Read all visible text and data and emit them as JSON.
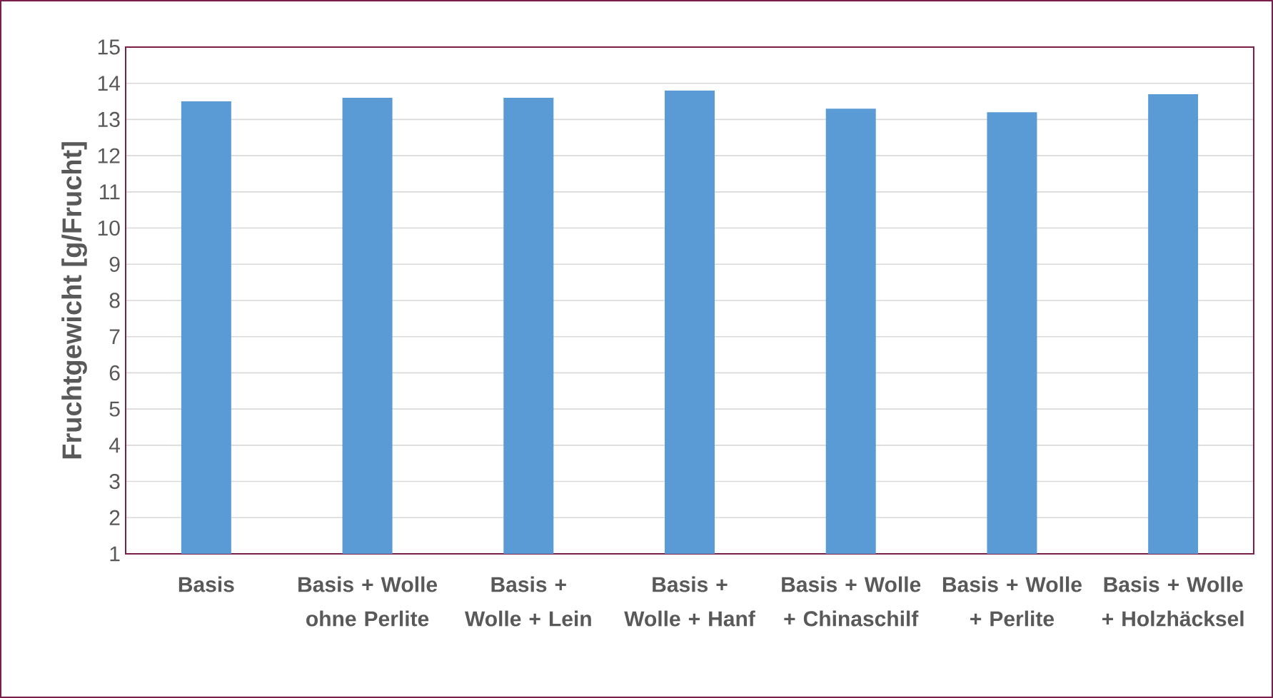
{
  "chart_data": {
    "type": "bar",
    "ylabel": "Fruchtgewicht [g/Frucht]",
    "categories": [
      "Basis",
      "Basis + Wolle ohne Perlite",
      "Basis + Wolle + Lein",
      "Basis + Wolle + Hanf",
      "Basis + Wolle + Chinaschilf",
      "Basis + Wolle + Perlite",
      "Basis + Wolle + Holzhäcksel"
    ],
    "values": [
      13.5,
      13.6,
      13.6,
      13.8,
      13.3,
      13.2,
      13.7
    ],
    "color": "#5b9bd5",
    "ylim": [
      1,
      15
    ],
    "yticks": [
      1,
      2,
      3,
      4,
      5,
      6,
      7,
      8,
      9,
      10,
      11,
      12,
      13,
      14,
      15
    ],
    "grid": "y"
  }
}
